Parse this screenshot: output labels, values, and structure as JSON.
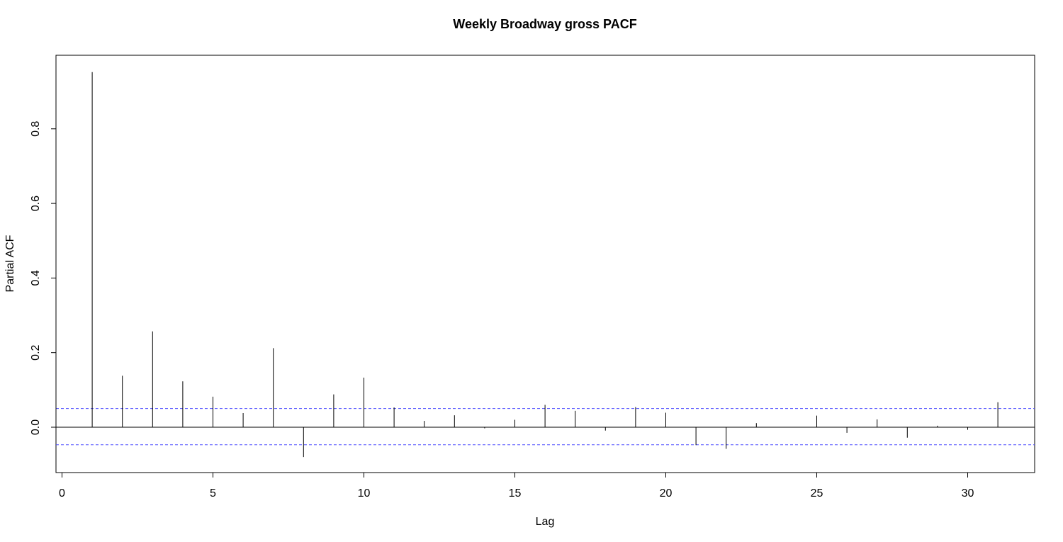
{
  "chart_data": {
    "type": "bar",
    "title": "Weekly Broadway gross PACF",
    "xlabel": "Lag",
    "ylabel": "Partial ACF",
    "xlim": [
      0,
      32
    ],
    "ylim": [
      -0.12,
      0.97
    ],
    "x_ticks": [
      0,
      5,
      10,
      15,
      20,
      25,
      30
    ],
    "y_ticks": [
      0.0,
      0.2,
      0.4,
      0.6,
      0.8
    ],
    "y_tick_labels": [
      "0.0",
      "0.2",
      "0.4",
      "0.6",
      "0.8"
    ],
    "confidence_bounds": [
      0.05,
      -0.047
    ],
    "confidence_color": "#4d4dff",
    "bar_color": "#000000",
    "grid": false,
    "series": [
      {
        "lags": [
          1,
          2,
          3,
          4,
          5,
          6,
          7,
          8,
          9,
          10,
          11,
          12,
          13,
          14,
          15,
          16,
          17,
          18,
          19,
          20,
          21,
          22,
          23,
          24,
          25,
          26,
          27,
          28,
          29,
          30,
          31
        ],
        "values": [
          0.952,
          0.138,
          0.257,
          0.123,
          0.082,
          0.038,
          0.212,
          -0.08,
          0.088,
          0.133,
          0.053,
          0.017,
          0.032,
          -0.003,
          0.02,
          0.06,
          0.044,
          -0.009,
          0.054,
          0.039,
          -0.048,
          -0.058,
          0.011,
          0.0,
          0.031,
          -0.015,
          0.021,
          -0.028,
          0.004,
          -0.007,
          0.067
        ]
      }
    ]
  }
}
